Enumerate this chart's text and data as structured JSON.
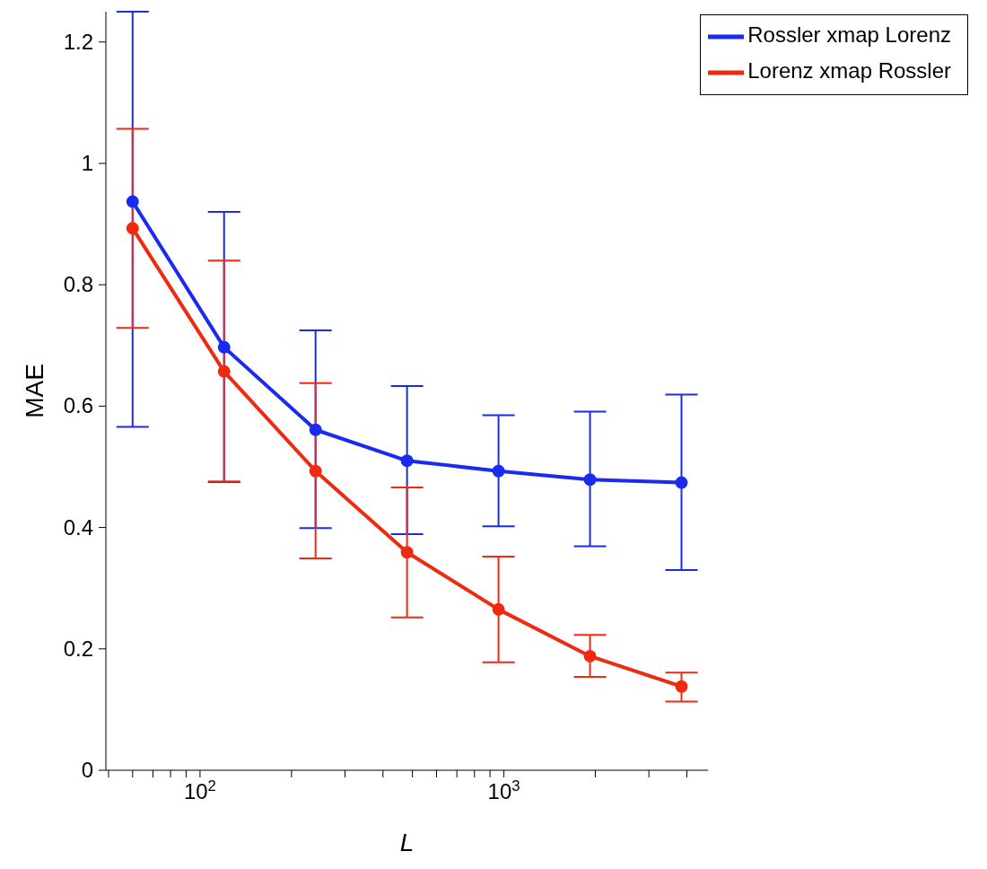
{
  "chart_data": {
    "type": "line",
    "xlabel": "L",
    "ylabel": "MAE",
    "log": "x",
    "xlim": [
      49,
      4700
    ],
    "xticks": [
      {
        "value": 50,
        "label": null
      },
      {
        "value": 60,
        "label": null
      },
      {
        "value": 70,
        "label": null
      },
      {
        "value": 80,
        "label": null
      },
      {
        "value": 90,
        "label": null
      },
      {
        "value": 100,
        "label": "10$^{2}$"
      },
      {
        "value": 200,
        "label": null
      },
      {
        "value": 300,
        "label": null
      },
      {
        "value": 400,
        "label": null
      },
      {
        "value": 500,
        "label": null
      },
      {
        "value": 600,
        "label": null
      },
      {
        "value": 700,
        "label": null
      },
      {
        "value": 800,
        "label": null
      },
      {
        "value": 900,
        "label": null
      },
      {
        "value": 1000,
        "label": "10$^{3}$"
      },
      {
        "value": 2000,
        "label": null
      },
      {
        "value": 3000,
        "label": null
      },
      {
        "value": 4000,
        "label": null
      }
    ],
    "ylim": [
      0,
      1.25
    ],
    "yticks": [
      0,
      0.2,
      0.4,
      0.6,
      0.8,
      1,
      1.2
    ],
    "grid": false,
    "legend": "top right",
    "marker": "circle",
    "line_style": "solid",
    "x": [
      60,
      120,
      240,
      480,
      960,
      1920,
      3840
    ],
    "series": [
      {
        "name": "Rossler xmap Lorenz",
        "color": "#1a2bf0",
        "values": [
          0.937,
          0.697,
          0.561,
          0.51,
          0.493,
          0.479,
          0.474
        ],
        "errors": [
          [
            0.566,
            1.25
          ],
          [
            0.475,
            0.92
          ],
          [
            0.399,
            0.725
          ],
          [
            0.389,
            0.633
          ],
          [
            0.402,
            0.585
          ],
          [
            0.369,
            0.591
          ],
          [
            0.33,
            0.619
          ]
        ]
      },
      {
        "name": "Lorenz xmap Rossler",
        "color": "#f02a10",
        "values": [
          0.893,
          0.657,
          0.493,
          0.359,
          0.265,
          0.188,
          0.138
        ],
        "errors": [
          [
            0.729,
            1.057
          ],
          [
            0.476,
            0.84
          ],
          [
            0.349,
            0.638
          ],
          [
            0.252,
            0.466
          ],
          [
            0.178,
            0.352
          ],
          [
            0.154,
            0.223
          ],
          [
            0.113,
            0.161
          ]
        ]
      }
    ]
  }
}
